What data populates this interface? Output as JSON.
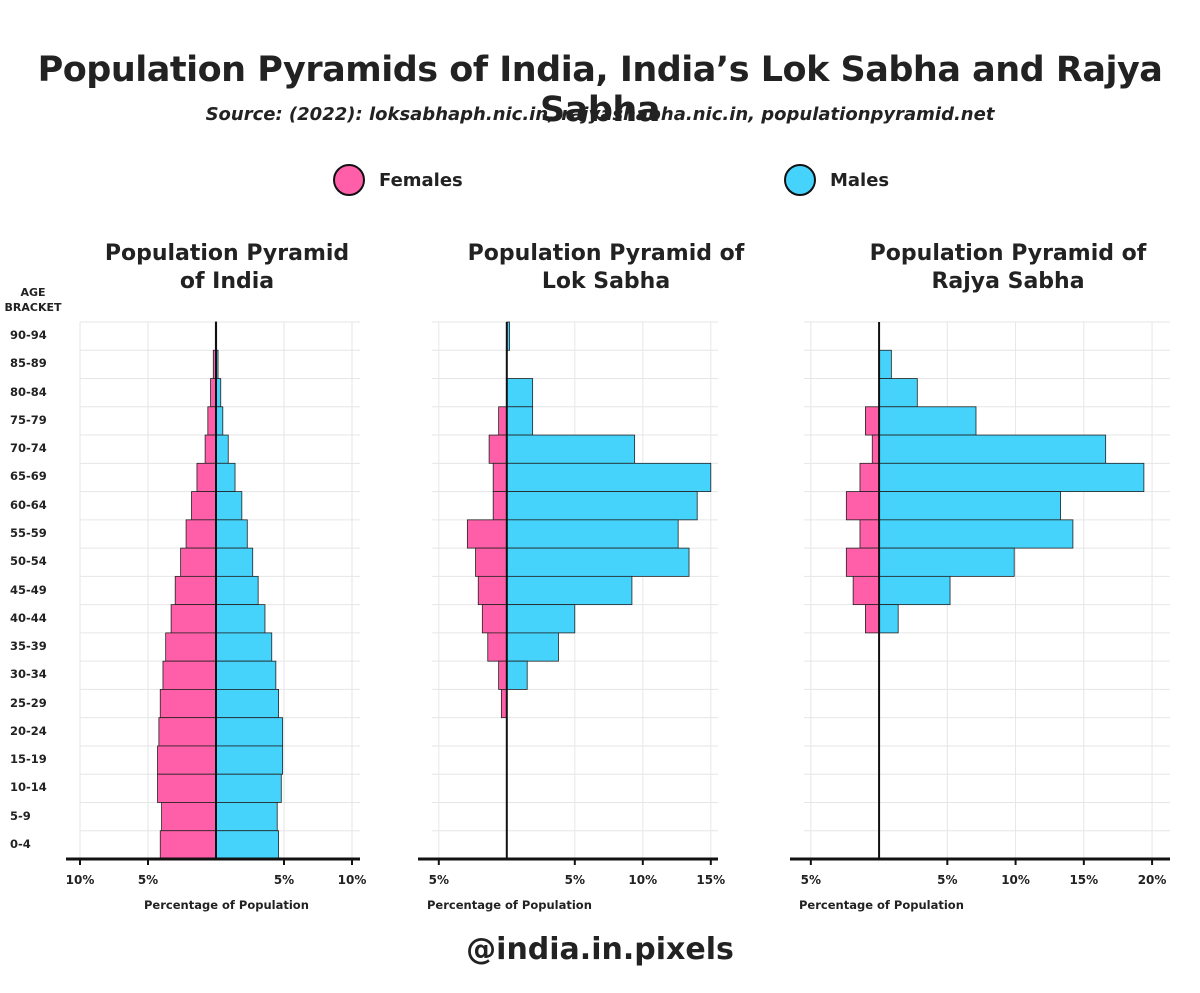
{
  "title": "Population Pyramids of India, India’s Lok Sabha and Rajya Sabha",
  "subtitle": "Source: (2022): loksabhaph.nic.in, rajyashabha.nic.in, populationpyramid.net",
  "legend": {
    "females": {
      "label": "Females",
      "color": "#ff5fa8"
    },
    "males": {
      "label": "Males",
      "color": "#45d2fb"
    }
  },
  "age_axis_title": [
    "AGE",
    "BRACKET"
  ],
  "age_brackets": [
    "90-94",
    "85-89",
    "80-84",
    "75-79",
    "70-74",
    "65-69",
    "60-64",
    "55-59",
    "50-54",
    "45-49",
    "40-44",
    "35-39",
    "30-34",
    "25-29",
    "20-24",
    "15-19",
    "10-14",
    "5-9",
    "0-4"
  ],
  "footer_handle": "@india.in.pixels",
  "chart_data": [
    {
      "type": "bar",
      "orientation": "horizontal-pyramid",
      "title": "Population Pyramid of India",
      "title_lines": [
        "Population Pyramid",
        "of India"
      ],
      "xlabel": "Percentage of Population",
      "categories": [
        "90-94",
        "85-89",
        "80-84",
        "75-79",
        "70-74",
        "65-69",
        "60-64",
        "55-59",
        "50-54",
        "45-49",
        "40-44",
        "35-39",
        "30-34",
        "25-29",
        "20-24",
        "15-19",
        "10-14",
        "5-9",
        "0-4"
      ],
      "series": [
        {
          "name": "Females",
          "values": [
            0.05,
            0.2,
            0.4,
            0.6,
            0.8,
            1.4,
            1.8,
            2.2,
            2.6,
            3.0,
            3.3,
            3.7,
            3.9,
            4.1,
            4.2,
            4.3,
            4.3,
            4.0,
            4.1
          ]
        },
        {
          "name": "Males",
          "values": [
            0.05,
            0.15,
            0.35,
            0.5,
            0.9,
            1.4,
            1.9,
            2.3,
            2.7,
            3.1,
            3.6,
            4.1,
            4.4,
            4.6,
            4.9,
            4.9,
            4.8,
            4.5,
            4.6
          ]
        }
      ],
      "xlim": [
        -10,
        10
      ],
      "xticks": [
        -10,
        -5,
        5,
        10
      ],
      "xtick_labels": [
        "10%",
        "5%",
        "5%",
        "10%"
      ]
    },
    {
      "type": "bar",
      "orientation": "horizontal-pyramid",
      "title": "Population Pyramid of Lok Sabha",
      "title_lines": [
        "Population Pyramid of",
        "Lok Sabha"
      ],
      "xlabel": "Percentage of Population",
      "categories": [
        "90-94",
        "85-89",
        "80-84",
        "75-79",
        "70-74",
        "65-69",
        "60-64",
        "55-59",
        "50-54",
        "45-49",
        "40-44",
        "35-39",
        "30-34",
        "25-29",
        "20-24",
        "15-19",
        "10-14",
        "5-9",
        "0-4"
      ],
      "series": [
        {
          "name": "Females",
          "values": [
            0,
            0,
            0,
            0.6,
            1.3,
            1.0,
            1.0,
            2.9,
            2.3,
            2.1,
            1.8,
            1.4,
            0.6,
            0.4,
            0,
            0,
            0,
            0,
            0
          ]
        },
        {
          "name": "Males",
          "values": [
            0.2,
            0,
            1.9,
            1.9,
            9.4,
            15.0,
            14.0,
            12.6,
            13.4,
            9.2,
            5.0,
            3.8,
            1.5,
            0,
            0,
            0,
            0,
            0,
            0
          ]
        }
      ],
      "xlim": [
        -5.5,
        15.5
      ],
      "xticks": [
        -5,
        5,
        10,
        15
      ],
      "xtick_labels": [
        "5%",
        "5%",
        "10%",
        "15%"
      ]
    },
    {
      "type": "bar",
      "orientation": "horizontal-pyramid",
      "title": "Population Pyramid of Rajya Sabha",
      "title_lines": [
        "Population Pyramid of",
        "Rajya Sabha"
      ],
      "xlabel": "Percentage of Population",
      "categories": [
        "90-94",
        "85-89",
        "80-84",
        "75-79",
        "70-74",
        "65-69",
        "60-64",
        "55-59",
        "50-54",
        "45-49",
        "40-44",
        "35-39",
        "30-34",
        "25-29",
        "20-24",
        "15-19",
        "10-14",
        "5-9",
        "0-4"
      ],
      "series": [
        {
          "name": "Females",
          "values": [
            0,
            0,
            0,
            1.0,
            0.5,
            1.4,
            2.4,
            1.4,
            2.4,
            1.9,
            1.0,
            0,
            0,
            0,
            0,
            0,
            0,
            0,
            0
          ]
        },
        {
          "name": "Males",
          "values": [
            0,
            0.9,
            2.8,
            7.1,
            16.6,
            19.4,
            13.3,
            14.2,
            9.9,
            5.2,
            1.4,
            0,
            0,
            0,
            0,
            0,
            0,
            0,
            0
          ]
        }
      ],
      "xlim": [
        -5.5,
        21
      ],
      "xticks": [
        -5,
        5,
        10,
        15,
        20
      ],
      "xtick_labels": [
        "5%",
        "5%",
        "10%",
        "15%",
        "20%"
      ]
    }
  ]
}
